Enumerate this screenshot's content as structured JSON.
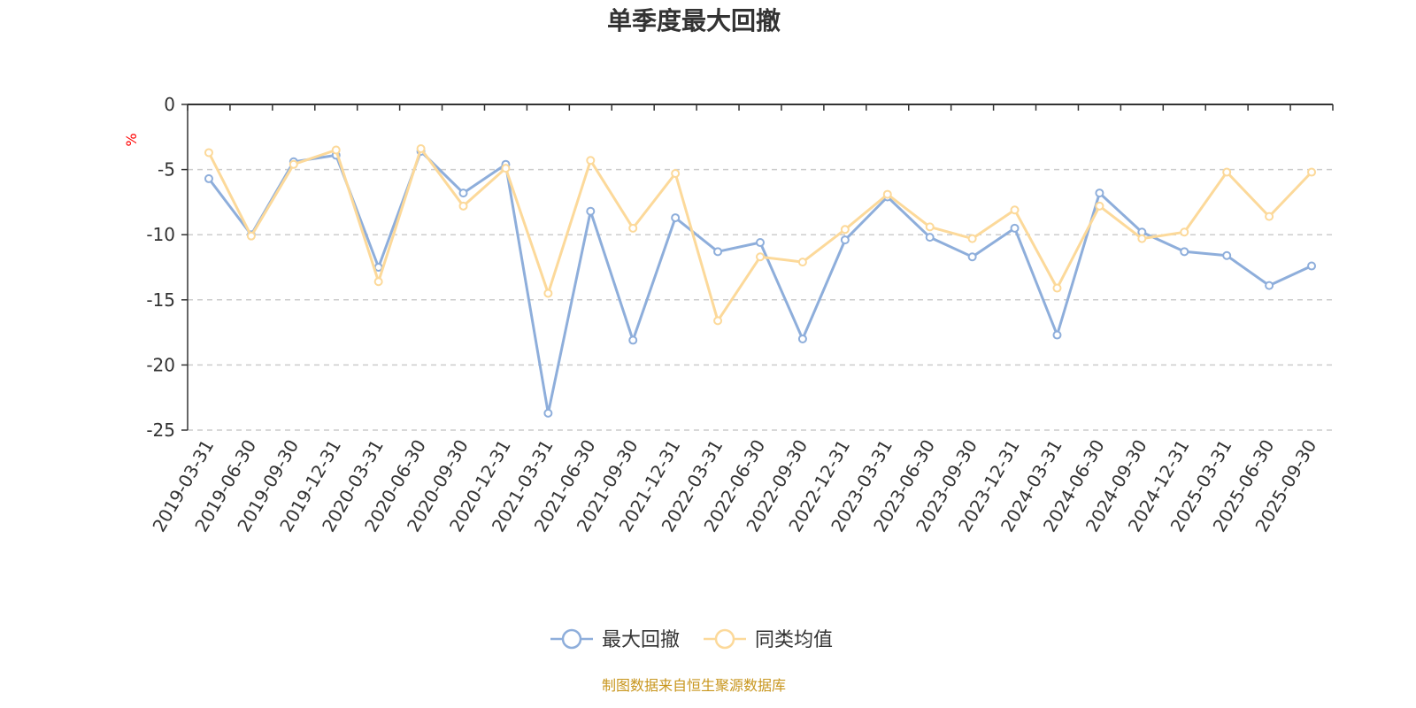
{
  "chart_data": {
    "type": "line",
    "title": "单季度最大回撤",
    "ylabel": "%",
    "xlabel": "",
    "ylim": [
      -25,
      0
    ],
    "yticks": [
      0,
      -5,
      -10,
      -15,
      -20,
      -25
    ],
    "grid": true,
    "legend_position": "bottom-center",
    "categories": [
      "2019-03-31",
      "2019-06-30",
      "2019-09-30",
      "2019-12-31",
      "2020-03-31",
      "2020-06-30",
      "2020-09-30",
      "2020-12-31",
      "2021-03-31",
      "2021-06-30",
      "2021-09-30",
      "2021-12-31",
      "2022-03-31",
      "2022-06-30",
      "2022-09-30",
      "2022-12-31",
      "2023-03-31",
      "2023-06-30",
      "2023-09-30",
      "2023-12-31",
      "2024-03-31",
      "2024-06-30",
      "2024-09-30",
      "2024-12-31",
      "2025-03-31",
      "2025-06-30",
      "2025-09-30"
    ],
    "series": [
      {
        "name": "最大回撤",
        "color": "#8eaedb",
        "values": [
          -5.7,
          -10.0,
          -4.4,
          -3.9,
          -12.5,
          -3.6,
          -6.8,
          -4.6,
          -23.7,
          -8.2,
          -18.1,
          -8.7,
          -11.3,
          -10.6,
          -18.0,
          -10.4,
          -7.1,
          -10.2,
          -11.7,
          -9.5,
          -17.7,
          -6.8,
          -9.8,
          -11.3,
          -11.6,
          -13.9,
          -12.4
        ]
      },
      {
        "name": "同类均值",
        "color": "#fcd99a",
        "values": [
          -3.7,
          -10.1,
          -4.6,
          -3.5,
          -13.6,
          -3.4,
          -7.8,
          -4.9,
          -14.5,
          -4.3,
          -9.5,
          -5.3,
          -16.6,
          -11.7,
          -12.1,
          -9.6,
          -6.9,
          -9.4,
          -10.3,
          -8.1,
          -14.1,
          -7.8,
          -10.3,
          -9.8,
          -5.2,
          -8.6,
          -5.2
        ]
      }
    ],
    "source": "制图数据来自恒生聚源数据库"
  }
}
